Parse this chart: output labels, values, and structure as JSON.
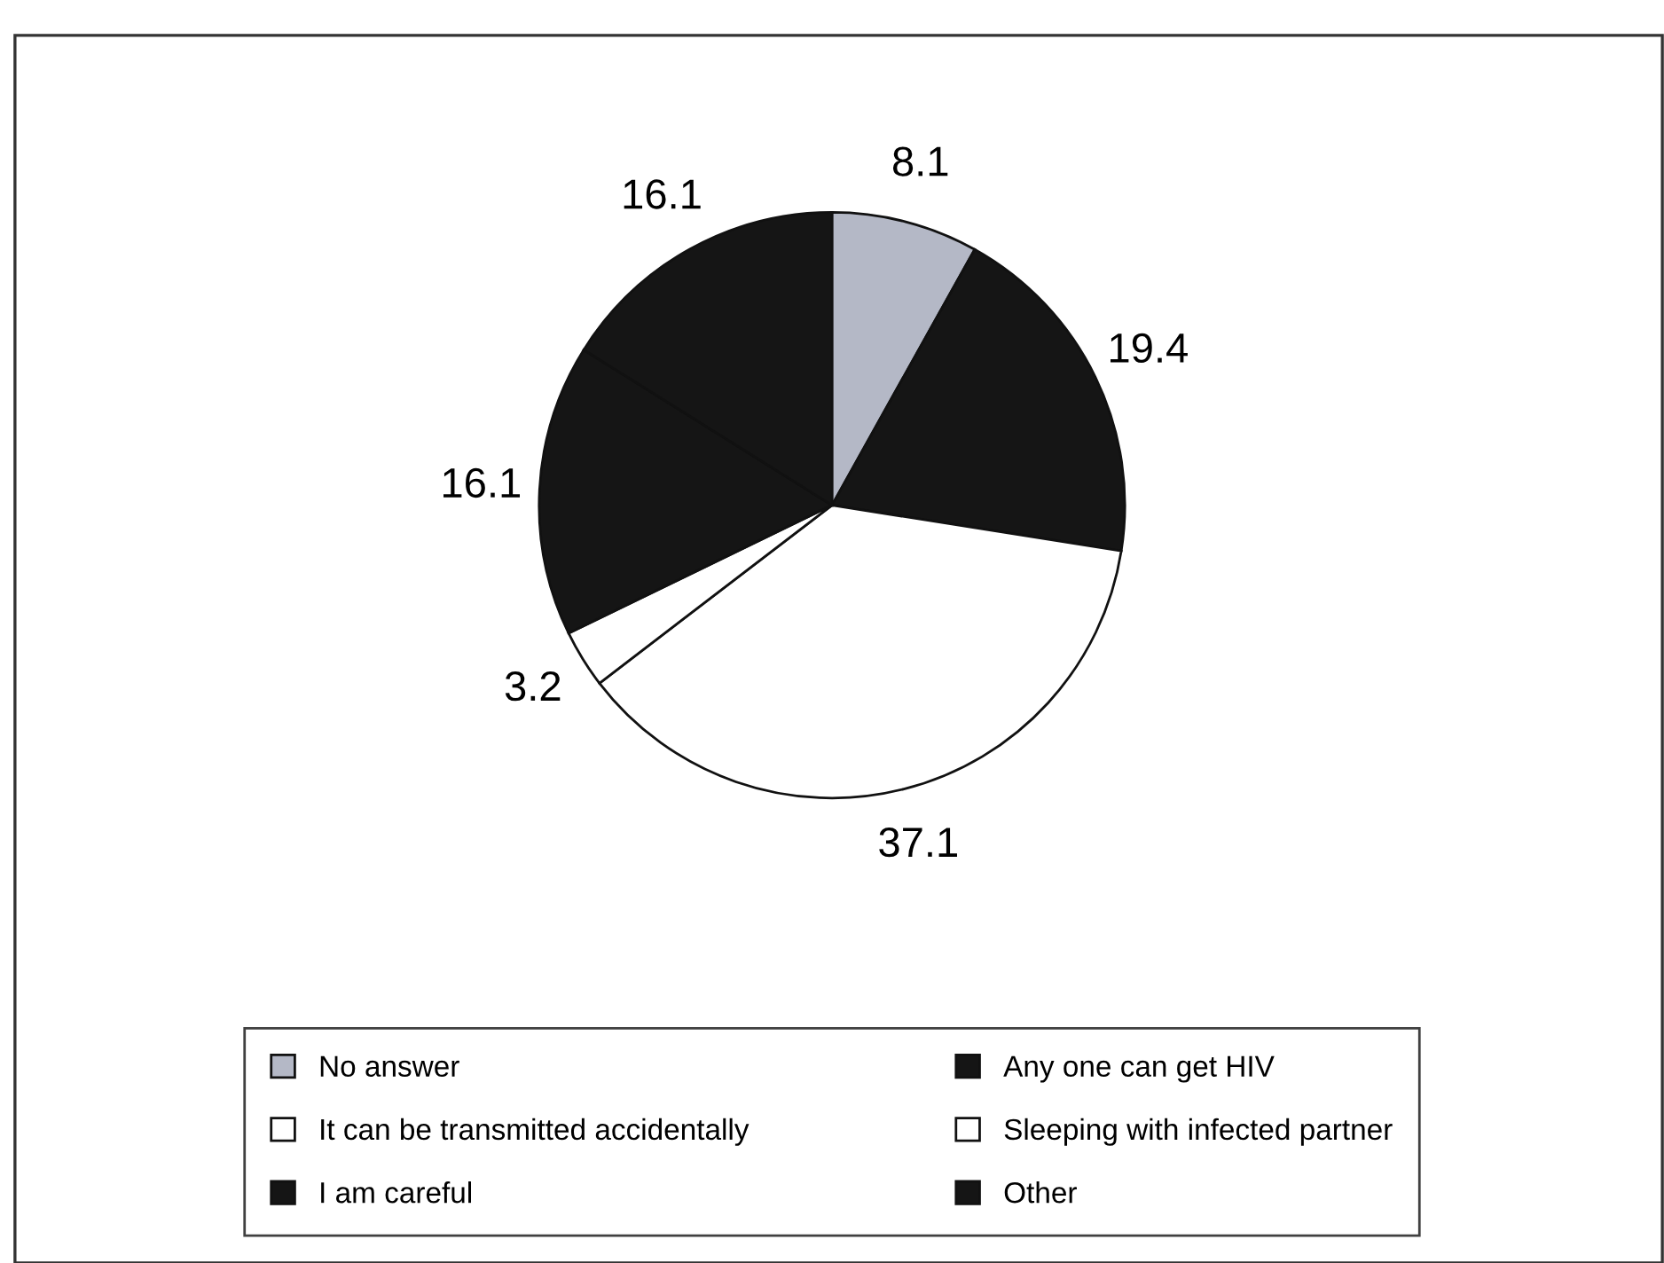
{
  "chart_data": {
    "type": "pie",
    "categories": [
      "No answer",
      "Any one can get HIV",
      "It can be transmitted accidentally",
      "Sleeping with infected partner",
      "I am careful",
      "Other"
    ],
    "values": [
      8.1,
      19.4,
      37.1,
      3.2,
      16.1,
      16.1
    ],
    "colors": [
      "#b4b8c6",
      "#151515",
      "#ffffff",
      "#ffffff",
      "#151515",
      "#151515"
    ],
    "data_labels": true,
    "legend": "bottom"
  }
}
